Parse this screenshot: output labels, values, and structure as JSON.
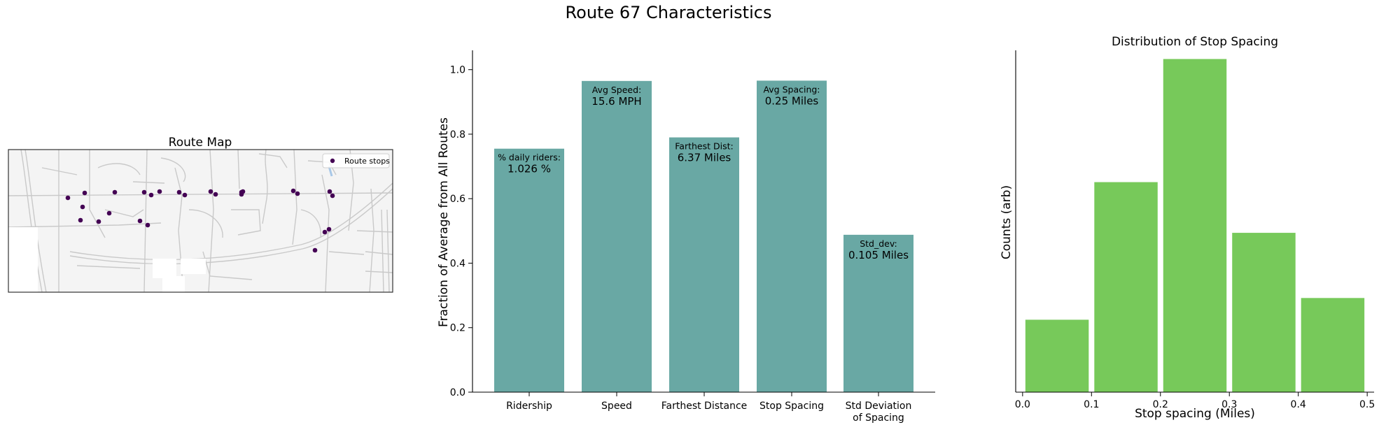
{
  "figure": {
    "title": "Route 67 Characteristics"
  },
  "map": {
    "title": "Route Map",
    "legend_label": "Route stops",
    "stop_color": "#440154"
  },
  "chart_data": [
    {
      "type": "bar",
      "title": "",
      "xlabel": "",
      "ylabel": "Fraction of Average from All Routes",
      "categories": [
        "Ridership",
        "Speed",
        "Farthest Distance",
        "Stop Spacing",
        "Std Deviation\nof Spacing"
      ],
      "values": [
        0.755,
        0.965,
        0.79,
        0.966,
        0.488
      ],
      "annotations": [
        {
          "label": "% daily riders:",
          "value": "1.026 %"
        },
        {
          "label": "Avg Speed:",
          "value": "15.6 MPH"
        },
        {
          "label": "Farthest Dist:",
          "value": "6.37 Miles"
        },
        {
          "label": "Avg Spacing:",
          "value": "0.25 Miles"
        },
        {
          "label": "Std_dev:",
          "value": "0.105 Miles"
        }
      ],
      "ylim": [
        0,
        1.06
      ],
      "yticks": [
        0.0,
        0.2,
        0.4,
        0.6,
        0.8,
        1.0
      ],
      "ytick_labels": [
        "0.0",
        "0.2",
        "0.4",
        "0.6",
        "0.8",
        "1.0"
      ],
      "color": "#69a8a4",
      "grid": false
    },
    {
      "type": "bar",
      "title": "Distribution of Stop Spacing",
      "xlabel": "Stop spacing (Miles)",
      "ylabel": "Counts (arb)",
      "bins": [
        {
          "start": 0.0,
          "end": 0.1,
          "count": 1
        },
        {
          "start": 0.1,
          "end": 0.2,
          "count": 2.9
        },
        {
          "start": 0.2,
          "end": 0.3,
          "count": 4.6
        },
        {
          "start": 0.3,
          "end": 0.4,
          "count": 2.2
        },
        {
          "start": 0.4,
          "end": 0.5,
          "count": 1.3
        }
      ],
      "xlim": [
        -0.01,
        0.51
      ],
      "ylim": [
        0,
        4.72
      ],
      "xticks": [
        0.0,
        0.1,
        0.2,
        0.3,
        0.4,
        0.5
      ],
      "xtick_labels": [
        "0.0",
        "0.1",
        "0.2",
        "0.3",
        "0.4",
        "0.5"
      ],
      "color": "#77c95a",
      "grid": false
    }
  ]
}
